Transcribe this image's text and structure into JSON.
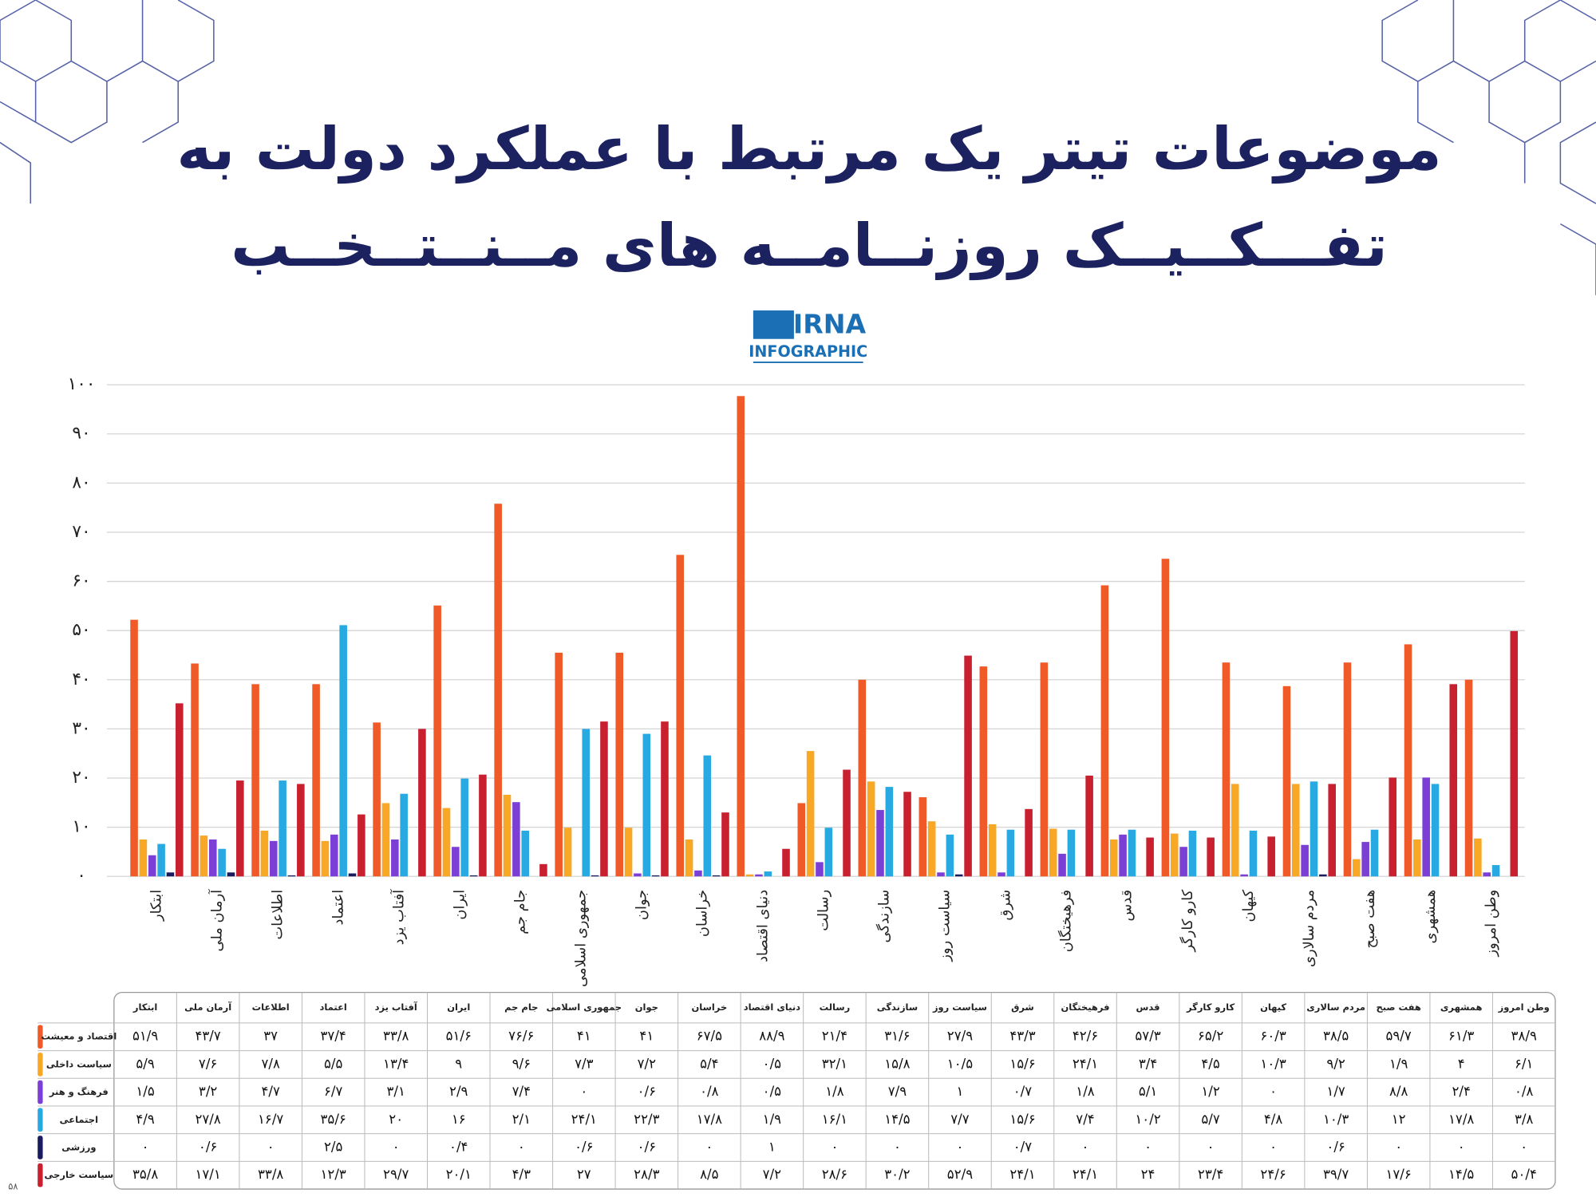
{
  "header": {
    "title_line1": "موضوعات تیتر یک مرتبط با عملکرد دولت به",
    "title_line2": "تفـــکــیــک روزنــامــه های مــنــتــخــب",
    "logo_top": "IRNA",
    "logo_bottom": "INFOGRAPHIC"
  },
  "chart_data": {
    "type": "bar",
    "grid": true,
    "categories": [
      "ابتکار",
      "آرمان ملی",
      "اطلاعات",
      "اعتماد",
      "آفتاب یزد",
      "ایران",
      "جام جم",
      "جمهوری اسلامی",
      "جوان",
      "خراسان",
      "دنیای اقتصاد",
      "رسالت",
      "سازندگی",
      "سیاست روز",
      "شرق",
      "فرهیختگان",
      "قدس",
      "کارو کارگر",
      "کیهان",
      "مردم سالاری",
      "هفت صبح",
      "همشهری",
      "وطن امروز"
    ],
    "series": [
      {
        "name": "اقتصاد و معیشت",
        "color": "#f05a28",
        "values": [
          52.2,
          43.3,
          39.1,
          39.1,
          31.3,
          55.1,
          75.8,
          45.5,
          45.5,
          65.4,
          97.7,
          14.9,
          40,
          16.1,
          42.7,
          43.5,
          59.2,
          64.6,
          43.5,
          38.7,
          43.5,
          47.2,
          40
        ]
      },
      {
        "name": "سیاست داخلی",
        "color": "#f9a825",
        "values": [
          7.5,
          8.3,
          9.3,
          7.2,
          14.9,
          13.9,
          16.6,
          9.9,
          9.9,
          7.5,
          0.4,
          25.5,
          19.3,
          11.2,
          10.6,
          9.7,
          7.5,
          8.7,
          18.8,
          18.8,
          3.5,
          7.5,
          7.7
        ]
      },
      {
        "name": "فرهنگ و هنر",
        "color": "#7b3fd6",
        "values": [
          4.3,
          7.5,
          7.2,
          8.5,
          7.5,
          6,
          15.1,
          0,
          0.6,
          1.2,
          0.4,
          2.9,
          13.5,
          0.8,
          0.8,
          4.6,
          8.5,
          6,
          0.4,
          6.4,
          7,
          20.1,
          0.8
        ]
      },
      {
        "name": "اجتماعی",
        "color": "#29a9e1",
        "values": [
          6.6,
          5.6,
          19.5,
          51.1,
          16.8,
          19.9,
          9.3,
          30,
          29,
          24.6,
          1,
          9.9,
          18.2,
          8.5,
          9.5,
          9.5,
          9.5,
          9.3,
          9.3,
          19.3,
          9.5,
          18.8,
          2.3
        ]
      },
      {
        "name": "ورزشی",
        "color": "#1a1a5e",
        "values": [
          0.8,
          0.8,
          0.2,
          0.6,
          0,
          0.2,
          0,
          0.2,
          0.2,
          0.2,
          0,
          0,
          0,
          0.4,
          0,
          0,
          0,
          0,
          0,
          0.4,
          0,
          0,
          0
        ]
      },
      {
        "name": "سیاست خارجی",
        "color": "#c8202f",
        "values": [
          35.2,
          19.5,
          18.8,
          12.6,
          30,
          20.7,
          2.5,
          31.5,
          31.5,
          13,
          5.6,
          21.7,
          17.2,
          44.9,
          13.7,
          20.5,
          7.9,
          7.9,
          8.1,
          18.8,
          20.1,
          39.1,
          49.9
        ]
      }
    ],
    "ylim": [
      0,
      100
    ],
    "yticks": [
      {
        "value": 0,
        "label": "۰"
      },
      {
        "value": 10,
        "label": "۱۰"
      },
      {
        "value": 20,
        "label": "۲۰"
      },
      {
        "value": 30,
        "label": "۳۰"
      },
      {
        "value": 40,
        "label": "۴۰"
      },
      {
        "value": 50,
        "label": "۵۰"
      },
      {
        "value": 60,
        "label": "۶۰"
      },
      {
        "value": 70,
        "label": "۷۰"
      },
      {
        "value": 80,
        "label": "۸۰"
      },
      {
        "value": 90,
        "label": "۹۰"
      },
      {
        "value": 100,
        "label": "۱۰۰"
      }
    ]
  },
  "table": {
    "rows": [
      [
        "۵۱/۹",
        "۴۳/۷",
        "۳۷",
        "۳۷/۴",
        "۳۳/۸",
        "۵۱/۶",
        "۷۶/۶",
        "۴۱",
        "۴۱",
        "۶۷/۵",
        "۸۸/۹",
        "۲۱/۴",
        "۳۱/۶",
        "۲۷/۹",
        "۴۳/۳",
        "۴۲/۶",
        "۵۷/۳",
        "۶۵/۲",
        "۶۰/۳",
        "۳۸/۵",
        "۵۹/۷",
        "۶۱/۳",
        "۳۸/۹"
      ],
      [
        "۵/۹",
        "۷/۶",
        "۷/۸",
        "۵/۵",
        "۱۳/۴",
        "۹",
        "۹/۶",
        "۷/۳",
        "۷/۲",
        "۵/۴",
        "۰/۵",
        "۳۲/۱",
        "۱۵/۸",
        "۱۰/۵",
        "۱۵/۶",
        "۲۴/۱",
        "۳/۴",
        "۴/۵",
        "۱۰/۳",
        "۹/۲",
        "۱/۹",
        "۴",
        "۶/۱"
      ],
      [
        "۱/۵",
        "۳/۲",
        "۴/۷",
        "۶/۷",
        "۳/۱",
        "۲/۹",
        "۷/۴",
        "۰",
        "۰/۶",
        "۰/۸",
        "۰/۵",
        "۱/۸",
        "۷/۹",
        "۱",
        "۰/۷",
        "۱/۸",
        "۵/۱",
        "۱/۲",
        "۰",
        "۱/۷",
        "۸/۸",
        "۲/۴",
        "۰/۸"
      ],
      [
        "۴/۹",
        "۲۷/۸",
        "۱۶/۷",
        "۳۵/۶",
        "۲۰",
        "۱۶",
        "۲/۱",
        "۲۴/۱",
        "۲۲/۳",
        "۱۷/۸",
        "۱/۹",
        "۱۶/۱",
        "۱۴/۵",
        "۷/۷",
        "۱۵/۶",
        "۷/۴",
        "۱۰/۲",
        "۵/۷",
        "۴/۸",
        "۱۰/۳",
        "۱۲",
        "۱۷/۸",
        "۳/۸"
      ],
      [
        "۰",
        "۰/۶",
        "۰",
        "۲/۵",
        "۰",
        "۰/۴",
        "۰",
        "۰/۶",
        "۰/۶",
        "۰",
        "۱",
        "۰",
        "۰",
        "۰",
        "۰/۷",
        "۰",
        "۰",
        "۰",
        "۰",
        "۰/۶",
        "۰",
        "۰",
        "۰"
      ],
      [
        "۳۵/۸",
        "۱۷/۱",
        "۳۳/۸",
        "۱۲/۳",
        "۲۹/۷",
        "۲۰/۱",
        "۴/۳",
        "۲۷",
        "۲۸/۳",
        "۸/۵",
        "۷/۲",
        "۲۸/۶",
        "۳۰/۲",
        "۵۲/۹",
        "۲۴/۱",
        "۲۴/۱",
        "۲۴",
        "۲۳/۴",
        "۲۴/۶",
        "۳۹/۷",
        "۱۷/۶",
        "۱۴/۵",
        "۵۰/۴"
      ]
    ]
  },
  "page_number": "۵۸"
}
